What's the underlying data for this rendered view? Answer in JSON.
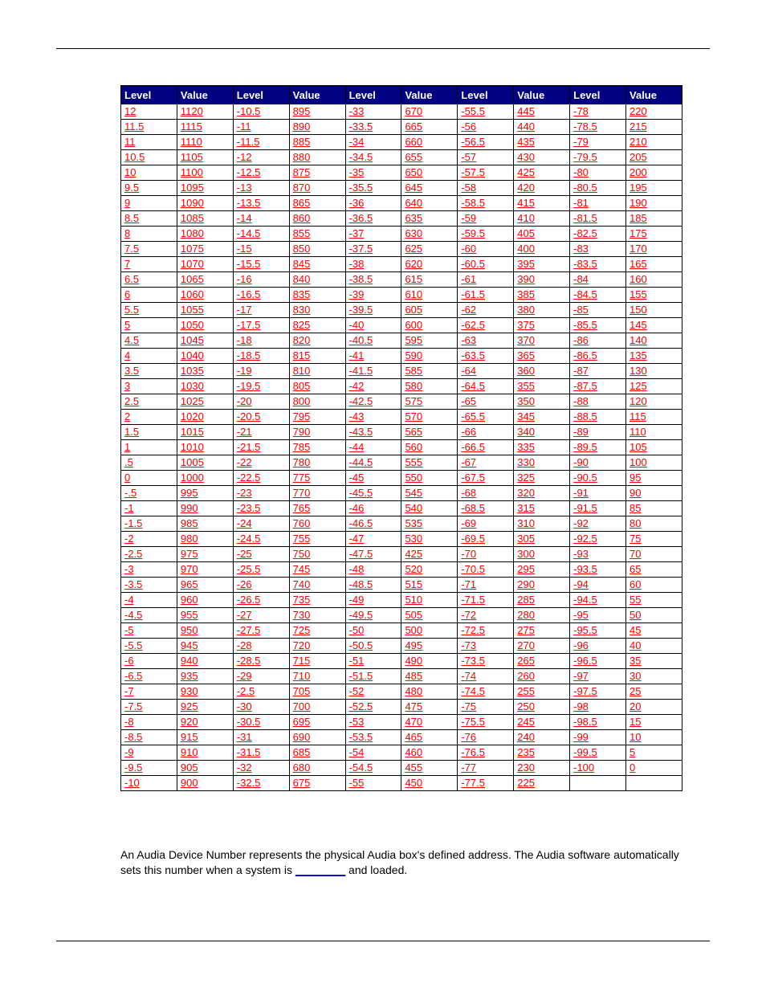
{
  "table": {
    "header_bg": "#000080",
    "header_fg": "#ffffff",
    "cell_fg": "#ff0000",
    "border_color": "#000000",
    "font_size_header": 13,
    "font_size_cell": 13,
    "headers": [
      "Level",
      "Value",
      "Level",
      "Value",
      "Level",
      "Value",
      "Level",
      "Value",
      "Level",
      "Value"
    ],
    "rows": [
      [
        "12",
        "1120",
        "-10.5",
        "895",
        "-33",
        "670",
        "-55.5",
        "445",
        "-78",
        "220"
      ],
      [
        "11.5",
        "1115",
        "-11",
        "890",
        "-33.5",
        "665",
        "-56",
        "440",
        "-78.5",
        "215"
      ],
      [
        "11",
        "1110",
        "-11.5",
        "885",
        "-34",
        "660",
        "-56.5",
        "435",
        "-79",
        "210"
      ],
      [
        "10.5",
        "1105",
        "-12",
        "880",
        "-34.5",
        "655",
        "-57",
        "430",
        "-79.5",
        "205"
      ],
      [
        "10",
        "1100",
        "-12.5",
        "875",
        "-35",
        "650",
        "-57.5",
        "425",
        "-80",
        "200"
      ],
      [
        "9.5",
        "1095",
        "-13",
        "870",
        "-35.5",
        "645",
        "-58",
        "420",
        "-80.5",
        "195"
      ],
      [
        "9",
        "1090",
        "-13.5",
        "865",
        "-36",
        "640",
        "-58.5",
        "415",
        "-81",
        "190"
      ],
      [
        "8.5",
        "1085",
        "-14",
        "860",
        "-36.5",
        "635",
        "-59",
        "410",
        "-81.5",
        "185"
      ],
      [
        "8",
        "1080",
        "-14.5",
        "855",
        "-37",
        "630",
        "-59.5",
        "405",
        "-82.5",
        "175"
      ],
      [
        "7.5",
        "1075",
        "-15",
        "850",
        "-37.5",
        "625",
        "-60",
        "400",
        "-83",
        "170"
      ],
      [
        "7",
        "1070",
        "-15.5",
        "845",
        "-38",
        "620",
        "-60.5",
        "395",
        "-83.5",
        "165"
      ],
      [
        "6.5",
        "1065",
        "-16",
        "840",
        "-38.5",
        "615",
        "-61",
        "390",
        "-84",
        "160"
      ],
      [
        "6",
        "1060",
        "-16.5",
        "835",
        "-39",
        "610",
        "-61.5",
        "385",
        "-84.5",
        "155"
      ],
      [
        "5.5",
        "1055",
        "-17",
        "830",
        "-39.5",
        "605",
        "-62",
        "380",
        "-85",
        "150"
      ],
      [
        "5",
        "1050",
        "-17.5",
        "825",
        "-40",
        "600",
        "-62.5",
        "375",
        "-85.5",
        "145"
      ],
      [
        "4.5",
        "1045",
        "-18",
        "820",
        "-40.5",
        "595",
        "-63",
        "370",
        "-86",
        "140"
      ],
      [
        "4",
        "1040",
        "-18.5",
        "815",
        "-41",
        "590",
        "-63.5",
        "365",
        "-86.5",
        "135"
      ],
      [
        "3.5",
        "1035",
        "-19",
        "810",
        "-41.5",
        "585",
        "-64",
        "360",
        "-87",
        "130"
      ],
      [
        "3",
        "1030",
        "-19.5",
        "805",
        "-42",
        "580",
        "-64.5",
        "355",
        "-87.5",
        "125"
      ],
      [
        "2.5",
        "1025",
        "-20",
        "800",
        "-42.5",
        "575",
        "-65",
        "350",
        "-88",
        "120"
      ],
      [
        "2",
        "1020",
        "-20.5",
        "795",
        "-43",
        "570",
        "-65.5",
        "345",
        "-88.5",
        "115"
      ],
      [
        "1.5",
        "1015",
        "-21",
        "790",
        "-43.5",
        "565",
        "-66",
        "340",
        "-89",
        "110"
      ],
      [
        "1",
        "1010",
        "-21.5",
        "785",
        "-44",
        "560",
        "-66.5",
        "335",
        "-89.5",
        "105"
      ],
      [
        ".5",
        "1005",
        "-22",
        "780",
        "-44.5",
        "555",
        "-67",
        "330",
        "-90",
        "100"
      ],
      [
        "0",
        "1000",
        "-22.5",
        "775",
        "-45",
        "550",
        "-67.5",
        "325",
        "-90.5",
        "95"
      ],
      [
        "-.5",
        "995",
        "-23",
        "770",
        "-45.5",
        "545",
        "-68",
        "320",
        "-91",
        "90"
      ],
      [
        "-1",
        "990",
        "-23.5",
        "765",
        "-46",
        "540",
        "-68.5",
        "315",
        "-91.5",
        "85"
      ],
      [
        "-1.5",
        "985",
        "-24",
        "760",
        "-46.5",
        "535",
        "-69",
        "310",
        "-92",
        "80"
      ],
      [
        "-2",
        "980",
        "-24.5",
        "755",
        "-47",
        "530",
        "-69.5",
        "305",
        "-92.5",
        "75"
      ],
      [
        "-2.5",
        "975",
        "-25",
        "750",
        "-47.5",
        "425",
        "-70",
        "300",
        "-93",
        "70"
      ],
      [
        "-3",
        "970",
        "-25.5",
        "745",
        "-48",
        "520",
        "-70.5",
        "295",
        "-93.5",
        "65"
      ],
      [
        "-3.5",
        "965",
        "-26",
        "740",
        "-48.5",
        "515",
        "-71",
        "290",
        "-94",
        "60"
      ],
      [
        "-4",
        "960",
        "-26.5",
        "735",
        "-49",
        "510",
        "-71.5",
        "285",
        "-94.5",
        "55"
      ],
      [
        "-4.5",
        "955",
        "-27",
        "730",
        "-49.5",
        "505",
        "-72",
        "280",
        "-95",
        "50"
      ],
      [
        "-5",
        "950",
        "-27.5",
        "725",
        "-50",
        "500",
        "-72.5",
        "275",
        "-95.5",
        "45"
      ],
      [
        "-5.5",
        "945",
        "-28",
        "720",
        "-50.5",
        "495",
        "-73",
        "270",
        "-96",
        "40"
      ],
      [
        "-6",
        "940",
        "-28.5",
        "715",
        "-51",
        "490",
        "-73.5",
        "265",
        "-96.5",
        "35"
      ],
      [
        "-6.5",
        "935",
        "-29",
        "710",
        "-51.5",
        "485",
        "-74",
        "260",
        "-97",
        "30"
      ],
      [
        "-7",
        "930",
        "-2.5",
        "705",
        "-52",
        "480",
        "-74.5",
        "255",
        "-97.5",
        "25"
      ],
      [
        "-7.5",
        "925",
        "-30",
        "700",
        "-52.5",
        "475",
        "-75",
        "250",
        "-98",
        "20"
      ],
      [
        "-8",
        "920",
        "-30.5",
        "695",
        "-53",
        "470",
        "-75.5",
        "245",
        "-98.5",
        "15"
      ],
      [
        "-8.5",
        "915",
        "-31",
        "690",
        "-53.5",
        "465",
        "-76",
        "240",
        "-99",
        "10"
      ],
      [
        "-9",
        "910",
        "-31.5",
        "685",
        "-54",
        "460",
        "-76.5",
        "235",
        "-99.5",
        "5"
      ],
      [
        "-9.5",
        "905",
        "-32",
        "680",
        "-54.5",
        "455",
        "-77",
        "230",
        "-100",
        "0"
      ],
      [
        "-10",
        "900",
        "-32.5",
        "675",
        "-55",
        "450",
        "-77.5",
        "225",
        "",
        ""
      ]
    ]
  },
  "paragraph": {
    "pre": "An Audia Device Number represents the physical Audia box's defined address. The Audia software automatically sets this number when a system is ",
    "link": "________",
    "post": " and loaded."
  }
}
